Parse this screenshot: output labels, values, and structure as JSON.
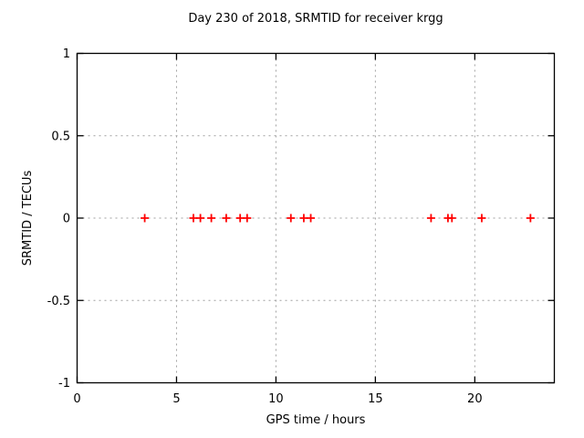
{
  "figure": {
    "background": "#ffffff"
  },
  "chart_data": {
    "type": "scatter",
    "title": "Day 230 of 2018, SRMTID for receiver krgg",
    "xlabel": "GPS time / hours",
    "ylabel": "SRMTID / TECUs",
    "xlim": [
      0,
      24
    ],
    "ylim": [
      -1,
      1
    ],
    "xticks": [
      0,
      5,
      10,
      15,
      20
    ],
    "xtick_labels": [
      "0",
      "5",
      "10",
      "15",
      "20"
    ],
    "yticks": [
      -1,
      -0.5,
      0,
      0.5,
      1
    ],
    "ytick_labels": [
      "-1",
      "-0.5",
      "0",
      "0.5",
      "1"
    ],
    "grid": true,
    "legend": false,
    "series": [
      {
        "name": "SRMTID",
        "marker": "plus",
        "color": "#ff0000",
        "x": [
          3.4,
          5.85,
          6.2,
          6.75,
          7.5,
          8.2,
          8.55,
          10.75,
          11.4,
          11.75,
          17.8,
          18.65,
          18.85,
          20.35,
          22.8
        ],
        "y": [
          0,
          0,
          0,
          0,
          0,
          0,
          0,
          0,
          0,
          0,
          0,
          0,
          0,
          0,
          0
        ]
      }
    ],
    "colors": {
      "border": "#000000",
      "grid": "#a0a0a0",
      "text": "#000000",
      "background": "#ffffff"
    }
  }
}
